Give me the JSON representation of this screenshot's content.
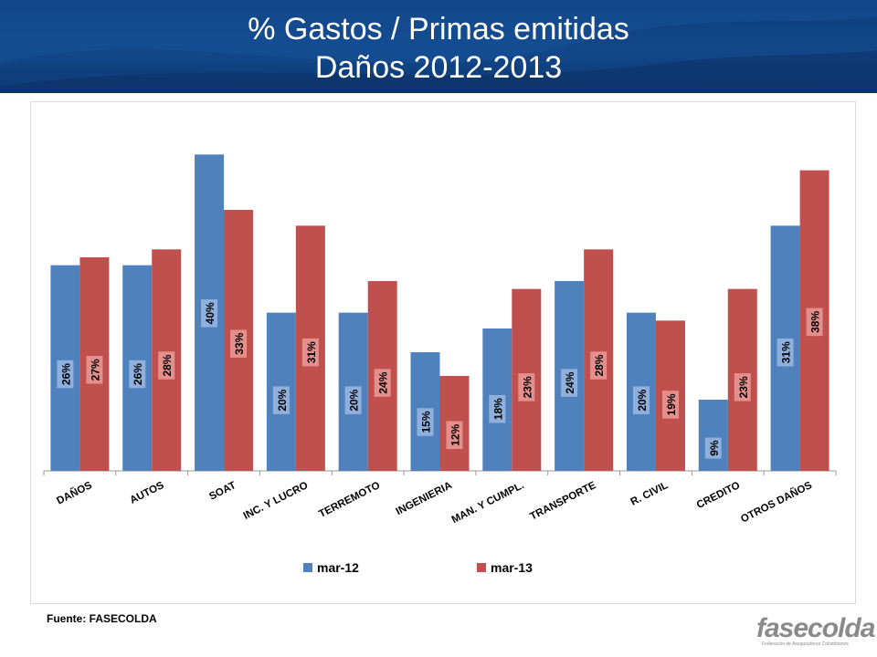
{
  "title": {
    "line1": "% Gastos / Primas emitidas",
    "line2": "Daños 2012-2013"
  },
  "source": "Fuente: FASECOLDA",
  "logo": {
    "text": "fasecolda",
    "subtitle": "Federación de Aseguradores Colombianos"
  },
  "colors": {
    "header": "#12478a",
    "series_1": "#4f81bd",
    "series_2": "#c0504d",
    "label_box_1": "#8fb0dc",
    "label_box_2": "#e58f8c"
  },
  "chart_data": {
    "type": "bar",
    "categories": [
      "DAÑOS",
      "AUTOS",
      "SOAT",
      "INC. Y LUCRO",
      "TERREMOTO",
      "INGENIERIA",
      "MAN. Y CUMPL.",
      "TRANSPORTE",
      "R. CIVIL",
      "CREDITO",
      "OTROS DAÑOS"
    ],
    "series": [
      {
        "name": "mar-12",
        "values": [
          26,
          26,
          40,
          20,
          20,
          15,
          18,
          24,
          20,
          9,
          31
        ],
        "labels": [
          "26%",
          "26%",
          "40%",
          "20%",
          "20%",
          "15%",
          "18%",
          "24%",
          "20%",
          "9%",
          "31%"
        ]
      },
      {
        "name": "mar-13",
        "values": [
          27,
          28,
          33,
          31,
          24,
          12,
          23,
          28,
          19,
          23,
          38
        ],
        "labels": [
          "27%",
          "28%",
          "33%",
          "31%",
          "24%",
          "12%",
          "23%",
          "28%",
          "19%",
          "23%",
          "38%"
        ]
      }
    ],
    "ylim": [
      0,
      42
    ],
    "grid": false,
    "legend_position": "bottom"
  }
}
